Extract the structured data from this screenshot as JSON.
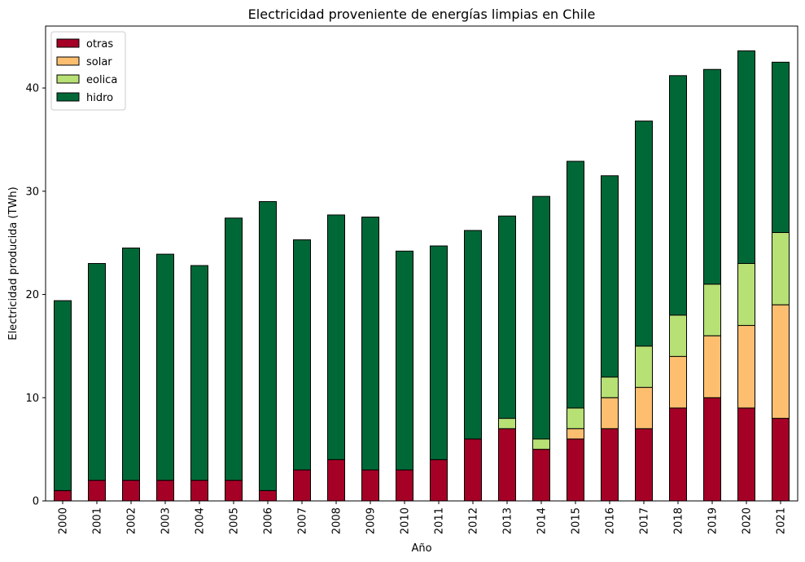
{
  "chart_data": {
    "type": "bar",
    "stacked": true,
    "title": "Electricidad proveniente de energías limpias en Chile",
    "xlabel": "Año",
    "ylabel": "Electricidad producida (TWh)",
    "ylim": [
      0,
      46
    ],
    "yticks": [
      0,
      10,
      20,
      30,
      40
    ],
    "grid": false,
    "legend_position": "top-left",
    "categories": [
      "2000",
      "2001",
      "2002",
      "2003",
      "2004",
      "2005",
      "2006",
      "2007",
      "2008",
      "2009",
      "2010",
      "2011",
      "2012",
      "2013",
      "2014",
      "2015",
      "2016",
      "2017",
      "2018",
      "2019",
      "2020",
      "2021"
    ],
    "series": [
      {
        "name": "otras",
        "color": "#a50026",
        "values": [
          1,
          2,
          2,
          2,
          2,
          2,
          1,
          3,
          4,
          3,
          3,
          4,
          6,
          7,
          5,
          6,
          7,
          7,
          9,
          10,
          9,
          8
        ]
      },
      {
        "name": "solar",
        "color": "#fdbf6f",
        "values": [
          0,
          0,
          0,
          0,
          0,
          0,
          0,
          0,
          0,
          0,
          0,
          0,
          0,
          0,
          0,
          1,
          3,
          4,
          5,
          6,
          8,
          11
        ]
      },
      {
        "name": "eolica",
        "color": "#b7e075",
        "values": [
          0,
          0,
          0,
          0,
          0,
          0,
          0,
          0,
          0,
          0,
          0,
          0,
          0,
          1,
          1,
          2,
          2,
          4,
          4,
          5,
          6,
          7
        ]
      },
      {
        "name": "hidro",
        "color": "#006837",
        "values": [
          18.4,
          21,
          22.5,
          21.9,
          20.8,
          25.4,
          28,
          22.3,
          23.7,
          24.5,
          21.2,
          20.7,
          20.2,
          19.6,
          23.5,
          23.9,
          19.5,
          21.8,
          23.2,
          20.8,
          20.6,
          16.5
        ]
      }
    ]
  }
}
